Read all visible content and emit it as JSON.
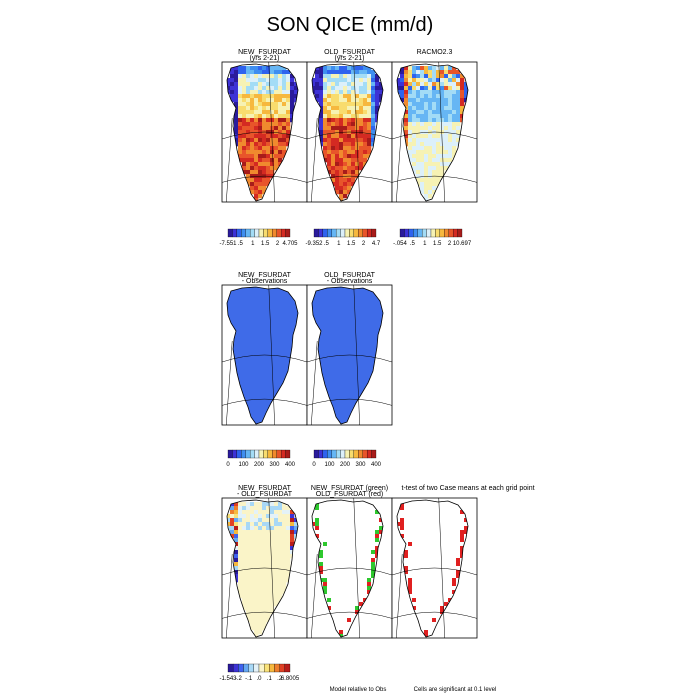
{
  "title": "SON QICE (mm/d)",
  "palette": {
    "default": [
      "#2a1b9c",
      "#3d32d6",
      "#2f63ee",
      "#3f8ef0",
      "#66b6f4",
      "#a3dcf6",
      "#dcf0fa",
      "#f6f2b4",
      "#f8dc6e",
      "#f6b83e",
      "#f08a2e",
      "#e8552a",
      "#d42a22",
      "#a81c1a"
    ],
    "diff": [
      "#2a1b9c",
      "#3d32d6",
      "#3f62ee",
      "#66a8f2",
      "#a8d8f6",
      "#e4f2f8",
      "#faf4c8",
      "#f9e27a",
      "#f6b83e",
      "#ee7e2c",
      "#e04024",
      "#b81c1a"
    ],
    "bias_fill": "#3f6be8",
    "diff_dominant": "#f8f0b0",
    "sig_green": "#2ec82e",
    "sig_red": "#e02020"
  },
  "chart_data": [
    {
      "type": "heatmap",
      "id": "new-fsurdat",
      "title": "NEW_FSURDAT",
      "subtitle": "(yrs 2-21)",
      "colorbar": {
        "labels": [
          "-7.551",
          ".5",
          "1",
          "1.5",
          "2",
          "4.705"
        ]
      }
    },
    {
      "type": "heatmap",
      "id": "old-fsurdat",
      "title": "OLD_FSURDAT",
      "subtitle": "(yrs 2-21)",
      "colorbar": {
        "labels": [
          "-9.352",
          ".5",
          "1",
          "1.5",
          "2",
          "4.7"
        ]
      }
    },
    {
      "type": "heatmap",
      "id": "racmo",
      "title": "RACMO2.3",
      "subtitle": "",
      "colorbar": {
        "labels": [
          "-.054",
          ".5",
          "1",
          "1.5",
          "2",
          "10.697"
        ]
      }
    },
    {
      "type": "heatmap",
      "id": "new-minus-obs",
      "title": "NEW_FSURDAT",
      "subtitle": "- Observations",
      "colorbar": {
        "labels": [
          "0",
          "100",
          "200",
          "300",
          "400"
        ]
      }
    },
    {
      "type": "heatmap",
      "id": "old-minus-obs",
      "title": "OLD_FSURDAT",
      "subtitle": "- Observations",
      "colorbar": {
        "labels": [
          "0",
          "100",
          "200",
          "300",
          "400"
        ]
      }
    },
    {
      "type": "heatmap",
      "id": "new-minus-old",
      "title": "NEW_FSURDAT",
      "subtitle": "- OLD_FSURDAT",
      "colorbar": {
        "labels": [
          "-1.543",
          "-.2",
          "-.1",
          ".0",
          ".1",
          ".2",
          "6.8005"
        ]
      }
    },
    {
      "type": "heatmap",
      "id": "significance",
      "title": "NEW_FSURDAT (green)",
      "subtitle": "OLD_FSURDAT (red)",
      "overlap_text": "t-test of two Case means at each grid point"
    }
  ],
  "notes": {
    "model_relative": "Model relative to Obs",
    "cells_significant": "Cells are significant at 0.1 level"
  }
}
